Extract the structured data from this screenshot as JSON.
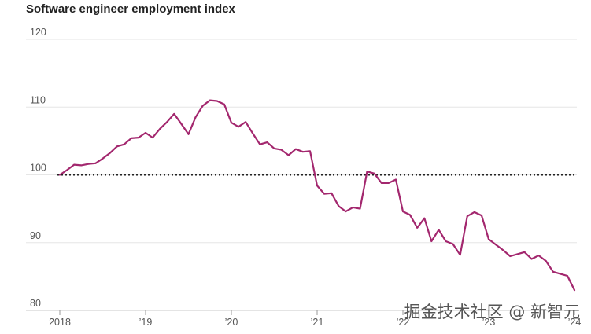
{
  "chart_data": {
    "type": "line",
    "title": "Software engineer employment index",
    "xlabel": "",
    "ylabel": "",
    "ylim": [
      80,
      120
    ],
    "xlim": [
      2018.0,
      2024.0
    ],
    "y_ticks": [
      120,
      110,
      100,
      90,
      80
    ],
    "x_ticks": [
      {
        "value": 2018,
        "label": "2018"
      },
      {
        "value": 2019,
        "label": "’19"
      },
      {
        "value": 2020,
        "label": "’20"
      },
      {
        "value": 2021,
        "label": "’21"
      },
      {
        "value": 2022,
        "label": "’22"
      },
      {
        "value": 2023,
        "label": "’23"
      },
      {
        "value": 2024,
        "label": "’24"
      }
    ],
    "reference_line": {
      "y": 100,
      "style": "dotted"
    },
    "grid": "horizontal",
    "series": [
      {
        "color": "#a3276e",
        "x": [
          2018.0,
          2018.083,
          2018.167,
          2018.25,
          2018.333,
          2018.417,
          2018.5,
          2018.583,
          2018.667,
          2018.75,
          2018.833,
          2018.917,
          2019.0,
          2019.083,
          2019.167,
          2019.25,
          2019.333,
          2019.417,
          2019.5,
          2019.583,
          2019.667,
          2019.75,
          2019.833,
          2019.917,
          2020.0,
          2020.083,
          2020.167,
          2020.25,
          2020.333,
          2020.417,
          2020.5,
          2020.583,
          2020.667,
          2020.75,
          2020.833,
          2020.917,
          2021.0,
          2021.083,
          2021.167,
          2021.25,
          2021.333,
          2021.417,
          2021.5,
          2021.583,
          2021.667,
          2021.75,
          2021.833,
          2021.917,
          2022.0,
          2022.083,
          2022.167,
          2022.25,
          2022.333,
          2022.417,
          2022.5,
          2022.583,
          2022.667,
          2022.75,
          2022.833,
          2022.917,
          2023.0,
          2023.083,
          2023.167,
          2023.25,
          2023.333,
          2023.417,
          2023.5,
          2023.583,
          2023.667,
          2023.75,
          2023.833,
          2023.917,
          2024.0
        ],
        "values": [
          100.0,
          100.7,
          101.5,
          101.4,
          101.6,
          101.7,
          102.4,
          103.2,
          104.2,
          104.5,
          105.4,
          105.5,
          106.2,
          105.5,
          106.8,
          107.8,
          109.0,
          107.5,
          106.0,
          108.5,
          110.2,
          111.0,
          110.9,
          110.4,
          107.7,
          107.1,
          107.8,
          106.1,
          104.5,
          104.8,
          103.9,
          103.7,
          102.9,
          103.8,
          103.4,
          103.5,
          98.4,
          97.2,
          97.3,
          95.4,
          94.6,
          95.2,
          95.0,
          100.5,
          100.2,
          98.8,
          98.8,
          99.3,
          94.6,
          94.1,
          92.2,
          93.6,
          90.2,
          91.9,
          90.2,
          89.8,
          88.2,
          93.9,
          94.5,
          94.0,
          90.5,
          89.7,
          88.9,
          88.0,
          88.3,
          88.6,
          87.6,
          88.1,
          87.3,
          85.7,
          85.4,
          85.1,
          83.0
        ]
      }
    ]
  },
  "watermark": "掘金技术社区 @ 新智元"
}
